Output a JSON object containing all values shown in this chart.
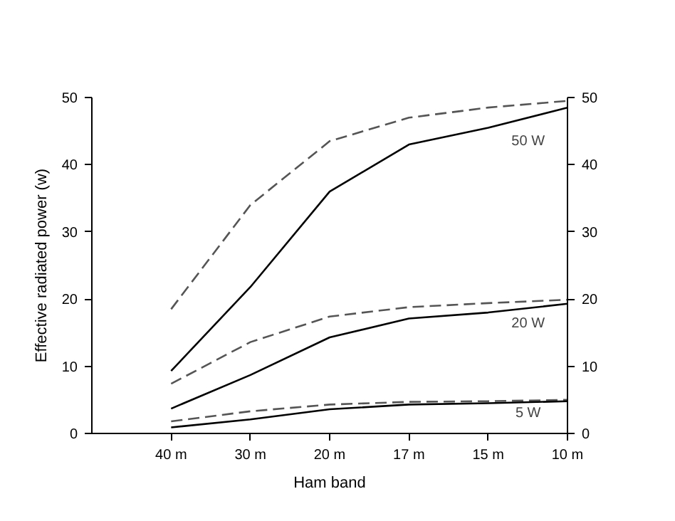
{
  "chart_data": {
    "type": "line",
    "xlabel": "Ham band",
    "ylabel": "Effective radiated power (w)",
    "categories": [
      "40 m",
      "30 m",
      "20 m",
      "17 m",
      "15 m",
      "10 m"
    ],
    "series": [
      {
        "color": "#555555",
        "line_style": "dashed",
        "values": [
          18.5,
          34,
          43.5,
          47,
          48.5,
          49.5
        ]
      },
      {
        "color": "#000000",
        "line_style": "solid",
        "values": [
          9.3,
          21.8,
          36,
          43,
          45.5,
          48.5
        ]
      },
      {
        "color": "#555555",
        "line_style": "dashed",
        "values": [
          7.4,
          13.6,
          17.4,
          18.8,
          19.4,
          19.9
        ]
      },
      {
        "color": "#000000",
        "line_style": "solid",
        "values": [
          3.7,
          8.7,
          14.3,
          17.1,
          18,
          19.3
        ]
      },
      {
        "color": "#555555",
        "line_style": "dashed",
        "values": [
          1.8,
          3.3,
          4.3,
          4.7,
          4.8,
          5.0
        ]
      },
      {
        "color": "#000000",
        "line_style": "solid",
        "values": [
          0.9,
          2.1,
          3.6,
          4.3,
          4.5,
          4.8
        ]
      }
    ],
    "annotations": [
      "50 W",
      "20 W",
      "5 W"
    ],
    "ylim": [
      0,
      50
    ],
    "yticks": [
      0,
      10,
      20,
      30,
      40,
      50
    ],
    "y2lim": [
      0,
      50
    ],
    "y2ticks": [
      0,
      10,
      20,
      30,
      40,
      50
    ],
    "grid": false,
    "marker": "none"
  }
}
